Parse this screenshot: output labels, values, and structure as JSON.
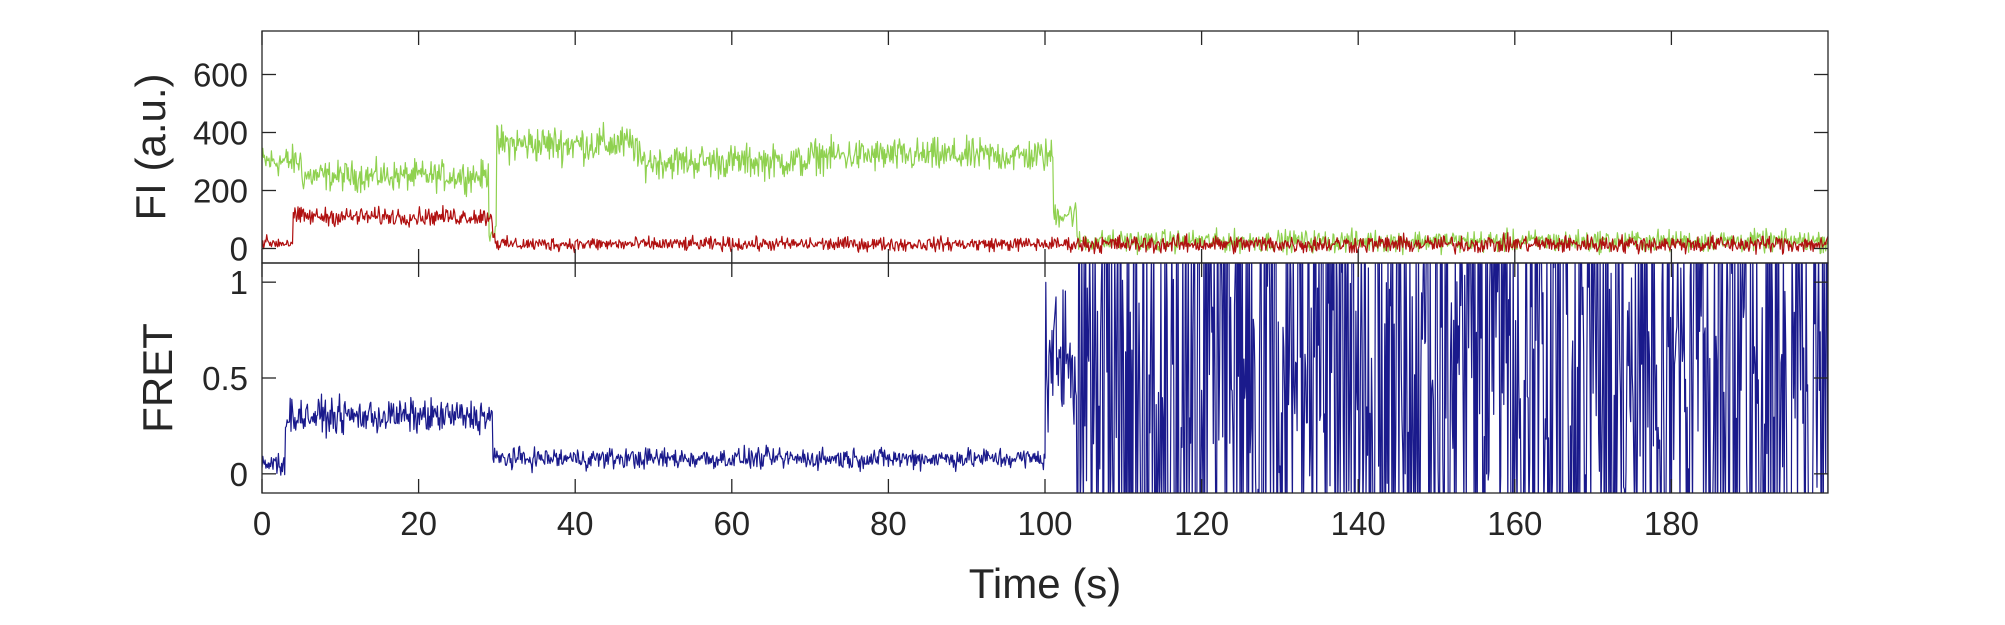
{
  "figure": {
    "xlabel": "Time (s)"
  },
  "chart_data": [
    {
      "type": "line",
      "panel": "top",
      "title": "",
      "xlabel": "",
      "ylabel": "FI (a.u.)",
      "xlim": [
        0,
        200
      ],
      "ylim": [
        -50,
        750
      ],
      "x_ticks": [
        0,
        20,
        40,
        60,
        80,
        100,
        120,
        140,
        160,
        180
      ],
      "y_ticks": [
        0,
        200,
        400,
        600
      ],
      "y_tick_labels": [
        "0",
        "200",
        "400",
        "600"
      ],
      "grid": false,
      "sample_interval_s": 0.1,
      "series": [
        {
          "color": "#8fd14f",
          "description": "donor intensity trace",
          "segments": [
            {
              "from": 0,
              "to": 5,
              "mean": 300,
              "noise": 80
            },
            {
              "from": 5,
              "to": 29,
              "mean": 250,
              "noise": 75
            },
            {
              "from": 29,
              "to": 30,
              "mean": 60,
              "noise": 50
            },
            {
              "from": 30,
              "to": 48,
              "mean": 360,
              "noise": 95
            },
            {
              "from": 48,
              "to": 70,
              "mean": 300,
              "noise": 85
            },
            {
              "from": 70,
              "to": 101,
              "mean": 320,
              "noise": 85
            },
            {
              "from": 101,
              "to": 104,
              "mean": 120,
              "noise": 70
            },
            {
              "from": 104,
              "to": 200,
              "mean": 25,
              "noise": 55
            }
          ]
        },
        {
          "color": "#b01010",
          "description": "acceptor intensity trace",
          "segments": [
            {
              "from": 0,
              "to": 4,
              "mean": 20,
              "noise": 35
            },
            {
              "from": 4,
              "to": 29.5,
              "mean": 110,
              "noise": 45
            },
            {
              "from": 29.5,
              "to": 30,
              "mean": 40,
              "noise": 40
            },
            {
              "from": 30,
              "to": 104,
              "mean": 15,
              "noise": 35
            },
            {
              "from": 104,
              "to": 200,
              "mean": 15,
              "noise": 45
            }
          ]
        }
      ]
    },
    {
      "type": "line",
      "panel": "bottom",
      "title": "",
      "xlabel": "Time (s)",
      "ylabel": "FRET",
      "xlim": [
        0,
        200
      ],
      "ylim": [
        -0.1,
        1.1
      ],
      "x_ticks": [
        0,
        20,
        40,
        60,
        80,
        100,
        120,
        140,
        160,
        180
      ],
      "x_tick_labels": [
        "0",
        "20",
        "40",
        "60",
        "80",
        "100",
        "120",
        "140",
        "160",
        "180"
      ],
      "y_ticks": [
        0,
        0.5,
        1
      ],
      "y_tick_labels": [
        "0",
        "0.5",
        "1"
      ],
      "grid": false,
      "sample_interval_s": 0.1,
      "series": [
        {
          "color": "#1a1a8c",
          "description": "FRET efficiency trace",
          "segments": [
            {
              "from": 0,
              "to": 3,
              "mean": 0.05,
              "noise": 0.1
            },
            {
              "from": 3,
              "to": 29.5,
              "mean": 0.3,
              "noise": 0.13
            },
            {
              "from": 29.5,
              "to": 100,
              "mean": 0.08,
              "noise": 0.08
            },
            {
              "from": 100,
              "to": 104,
              "mean": 0.6,
              "noise": 0.6
            },
            {
              "from": 104,
              "to": 200,
              "mean": 0.5,
              "noise": 1.6
            }
          ]
        }
      ]
    }
  ]
}
